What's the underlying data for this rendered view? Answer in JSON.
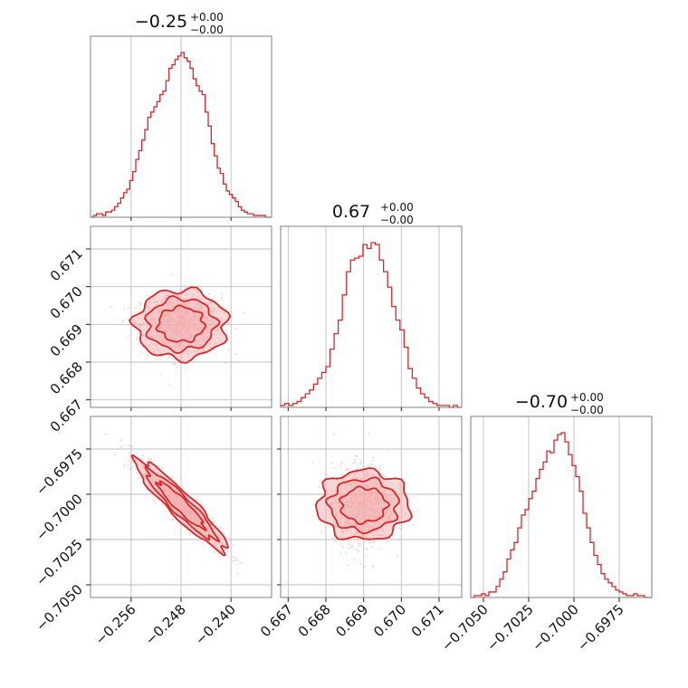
{
  "colors": {
    "accent": "#d62728",
    "accent_fill": "#f2a5a7",
    "scatter": "#f6c6c7",
    "grid": "#bdbdbd",
    "frame": "#808080"
  },
  "chart_data": {
    "type": "corner",
    "parameters": [
      {
        "title": {
          "value": "−0.25",
          "upper": "+0.00",
          "lower": "−0.00"
        },
        "range": [
          -0.2625,
          -0.2335
        ],
        "ticks": [
          -0.256,
          -0.248,
          -0.24
        ],
        "tick_labels": [
          "−0.256",
          "−0.248",
          "−0.240"
        ],
        "mean": -0.248,
        "sd": 0.0032,
        "hist": [
          0,
          1,
          2,
          2,
          1,
          3,
          3,
          4,
          6,
          8,
          11,
          14,
          16,
          21,
          26,
          33,
          38,
          44,
          50,
          57,
          60,
          63,
          66,
          70,
          72,
          78,
          85,
          87,
          90,
          92,
          94,
          91,
          89,
          85,
          79,
          75,
          72,
          70,
          60,
          52,
          42,
          35,
          28,
          25,
          19,
          15,
          13,
          11,
          9,
          6,
          4,
          3,
          2,
          2,
          1,
          1,
          1,
          1,
          0,
          0
        ]
      },
      {
        "title": {
          "value": "0.67",
          "upper": "+0.00",
          "lower": "−0.00"
        },
        "range": [
          0.6668,
          0.6716
        ],
        "ticks": [
          0.667,
          0.668,
          0.669,
          0.67,
          0.671
        ],
        "tick_labels": [
          "0.667",
          "0.668",
          "0.669",
          "0.670",
          "0.671"
        ],
        "mean": 0.669,
        "sd": 0.0004,
        "hist": [
          1,
          2,
          1,
          2,
          3,
          5,
          7,
          9,
          12,
          15,
          18,
          21,
          30,
          38,
          45,
          58,
          70,
          76,
          77,
          78,
          84,
          82,
          85,
          84,
          76,
          70,
          62,
          52,
          45,
          40,
          31,
          20,
          15,
          10,
          7,
          5,
          3,
          2,
          1,
          1,
          1,
          0,
          1,
          0
        ]
      },
      {
        "title": {
          "value": "−0.70",
          "upper": "+0.00",
          "lower": "−0.00"
        },
        "range": [
          -0.7057,
          -0.6957
        ],
        "ticks": [
          -0.705,
          -0.7025,
          -0.7,
          -0.6975
        ],
        "tick_labels": [
          "−0.7050",
          "−0.7025",
          "−0.7000",
          "−0.6975"
        ],
        "mean": -0.7006,
        "sd": 0.0011,
        "hist": [
          0,
          1,
          1,
          2,
          1,
          3,
          3,
          6,
          10,
          14,
          21,
          26,
          30,
          38,
          45,
          48,
          54,
          58,
          65,
          70,
          74,
          80,
          79,
          86,
          89,
          90,
          85,
          78,
          72,
          66,
          58,
          46,
          38,
          30,
          23,
          18,
          13,
          10,
          8,
          6,
          4,
          3,
          2,
          1,
          1,
          2,
          1,
          1,
          0,
          0
        ]
      }
    ],
    "pairs": [
      {
        "x": 0,
        "y": 1,
        "correlation": 0.0
      },
      {
        "x": 0,
        "y": 2,
        "correlation": -0.93
      },
      {
        "x": 1,
        "y": 2,
        "correlation": 0.0
      }
    ],
    "contour_levels_sigma": [
      1.0,
      1.5,
      2.0
    ],
    "grid": true,
    "legend": "none"
  }
}
